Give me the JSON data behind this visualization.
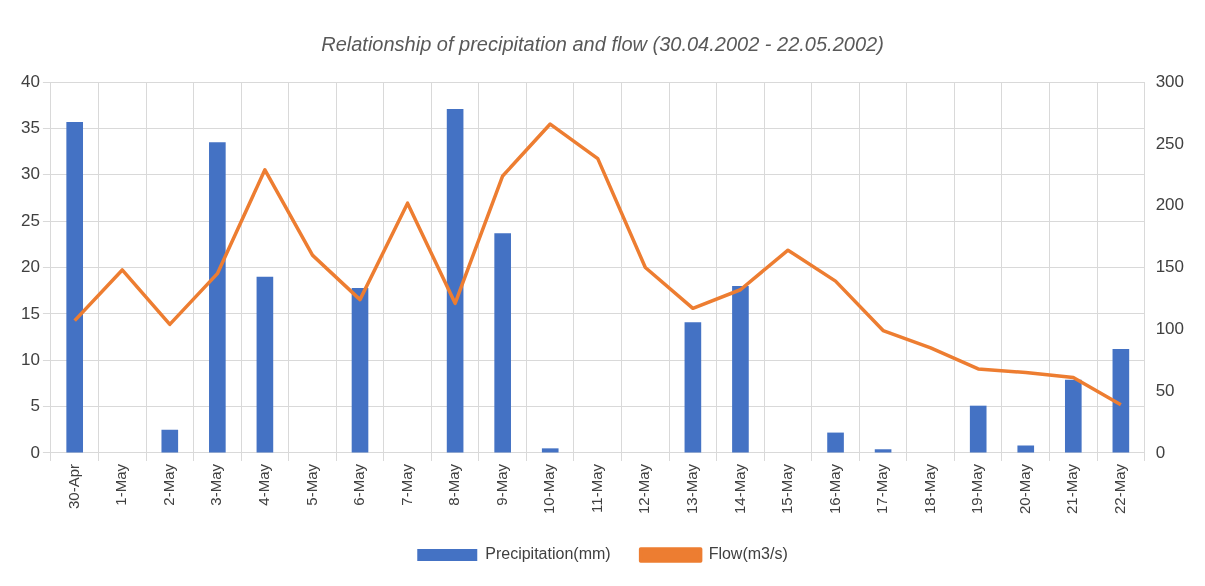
{
  "chart_data": {
    "type": "bar",
    "title": "Relationship of precipitation and flow (30.04.2002 - 22.05.2002)",
    "categories": [
      "30-Apr",
      "1-May",
      "2-May",
      "3-May",
      "4-May",
      "5-May",
      "6-May",
      "7-May",
      "8-May",
      "9-May",
      "10-May",
      "11-May",
      "12-May",
      "13-May",
      "14-May",
      "15-May",
      "16-May",
      "17-May",
      "18-May",
      "19-May",
      "20-May",
      "21-May",
      "22-May"
    ],
    "series": [
      {
        "name": "Precipitation(mm)",
        "color": "#4472c4",
        "values": [
          35.7,
          0,
          2.5,
          33.5,
          19,
          0,
          17.8,
          0,
          37.1,
          23.7,
          0.5,
          0,
          0,
          14.1,
          18,
          0,
          2.2,
          0.4,
          0,
          5.1,
          0.8,
          7.9,
          11.2
        ]
      },
      {
        "name": "Flow(m3/s)",
        "type": "line",
        "axis": "y2",
        "color": "#ed7d31",
        "values": [
          107,
          148,
          104,
          145,
          229,
          160,
          124,
          202,
          121,
          224,
          266,
          238,
          150,
          117,
          132,
          164,
          139,
          99,
          85,
          68,
          65,
          61,
          39
        ]
      }
    ],
    "ylim": [
      0,
      40
    ],
    "yticks": [
      0,
      5,
      10,
      15,
      20,
      25,
      30,
      35,
      40
    ],
    "y2lim": [
      0,
      300
    ],
    "y2ticks": [
      0,
      50,
      100,
      150,
      200,
      250,
      300
    ],
    "grid": true,
    "legend": "bottom",
    "marker": "none",
    "line_style": "solid"
  }
}
